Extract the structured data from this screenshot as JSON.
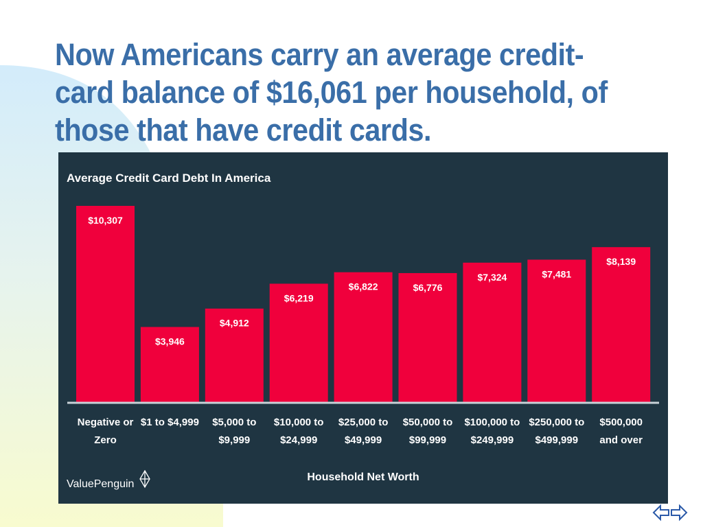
{
  "slide": {
    "title": "Now Americans carry an average credit-card balance of $16,061 per household, of those that have credit cards."
  },
  "source": {
    "brand": "ValuePenguin"
  },
  "colors": {
    "panel": "#1f3542",
    "bar": "#f0003c",
    "title": "#3a6ea8"
  },
  "chart_data": {
    "type": "bar",
    "title": "Average Credit Card Debt In America",
    "xlabel": "Household Net Worth",
    "ylabel": "",
    "categories": [
      [
        "Negative or",
        "Zero"
      ],
      [
        "$1 to $4,999"
      ],
      [
        "$5,000 to",
        "$9,999"
      ],
      [
        "$10,000 to",
        "$24,999"
      ],
      [
        "$25,000 to",
        "$49,999"
      ],
      [
        "$50,000 to",
        "$99,999"
      ],
      [
        "$100,000 to",
        "$249,999"
      ],
      [
        "$250,000 to",
        "$499,999"
      ],
      [
        "$500,000",
        "and over"
      ]
    ],
    "values": [
      10307,
      3946,
      4912,
      6219,
      6822,
      6776,
      7324,
      7481,
      8139
    ],
    "value_labels": [
      "$10,307",
      "$3,946",
      "$4,912",
      "$6,219",
      "$6,822",
      "$6,776",
      "$7,324",
      "$7,481",
      "$8,139"
    ],
    "ylim": [
      0,
      10307
    ],
    "grid": false,
    "legend": "none"
  },
  "icons": {
    "nav": "navigation-arrows-icon",
    "brand": "penguin-logo-icon"
  }
}
